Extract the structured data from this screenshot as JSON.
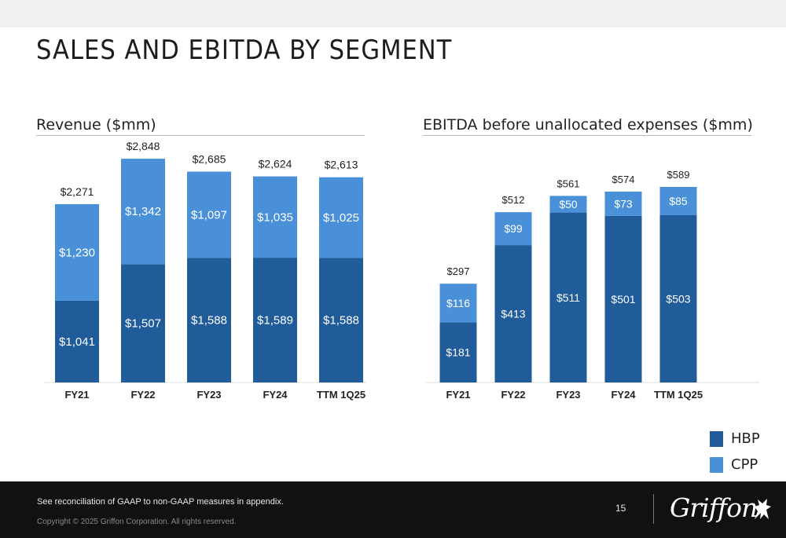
{
  "title": "SALES AND EBITDA BY SEGMENT",
  "colors": {
    "HBP": "#1f5c99",
    "CPP": "#4a90d9"
  },
  "legend": [
    {
      "label": "HBP",
      "color": "#1f5c99"
    },
    {
      "label": "CPP",
      "color": "#4a90d9"
    }
  ],
  "chart_data": [
    {
      "type": "bar",
      "stacked": true,
      "title": "Revenue ($mm)",
      "categories": [
        "FY21",
        "FY22",
        "FY23",
        "FY24",
        "TTM 1Q25"
      ],
      "series": [
        {
          "name": "HBP",
          "values": [
            1041,
            1507,
            1588,
            1589,
            1588
          ],
          "labels": [
            "$1,041",
            "$1,507",
            "$1,588",
            "$1,589",
            "$1,588"
          ]
        },
        {
          "name": "CPP",
          "values": [
            1230,
            1342,
            1097,
            1035,
            1025
          ],
          "labels": [
            "$1,230",
            "$1,342",
            "$1,097",
            "$1,035",
            "$1,025"
          ]
        }
      ],
      "totals": [
        2271,
        2848,
        2685,
        2624,
        2613
      ],
      "total_labels": [
        "$2,271",
        "$2,848",
        "$2,685",
        "$2,624",
        "$2,613"
      ]
    },
    {
      "type": "bar",
      "stacked": true,
      "title": "EBITDA before unallocated expenses ($mm)",
      "categories": [
        "FY21",
        "FY22",
        "FY23",
        "FY24",
        "TTM 1Q25"
      ],
      "series": [
        {
          "name": "HBP",
          "values": [
            181,
            413,
            511,
            501,
            503
          ],
          "labels": [
            "$181",
            "$413",
            "$511",
            "$501",
            "$503"
          ]
        },
        {
          "name": "CPP",
          "values": [
            116,
            99,
            50,
            73,
            85
          ],
          "labels": [
            "$116",
            "$99",
            "$50",
            "$73",
            "$85"
          ]
        }
      ],
      "totals": [
        297,
        512,
        561,
        574,
        589
      ],
      "total_labels": [
        "$297",
        "$512",
        "$561",
        "$574",
        "$589"
      ]
    }
  ],
  "footer": {
    "note": "See reconciliation of GAAP to non-GAAP measures in appendix.",
    "copyright": "Copyright © 2025 Griffon Corporation. All rights reserved.",
    "page_number": "15",
    "logo_text": "Griffon"
  }
}
